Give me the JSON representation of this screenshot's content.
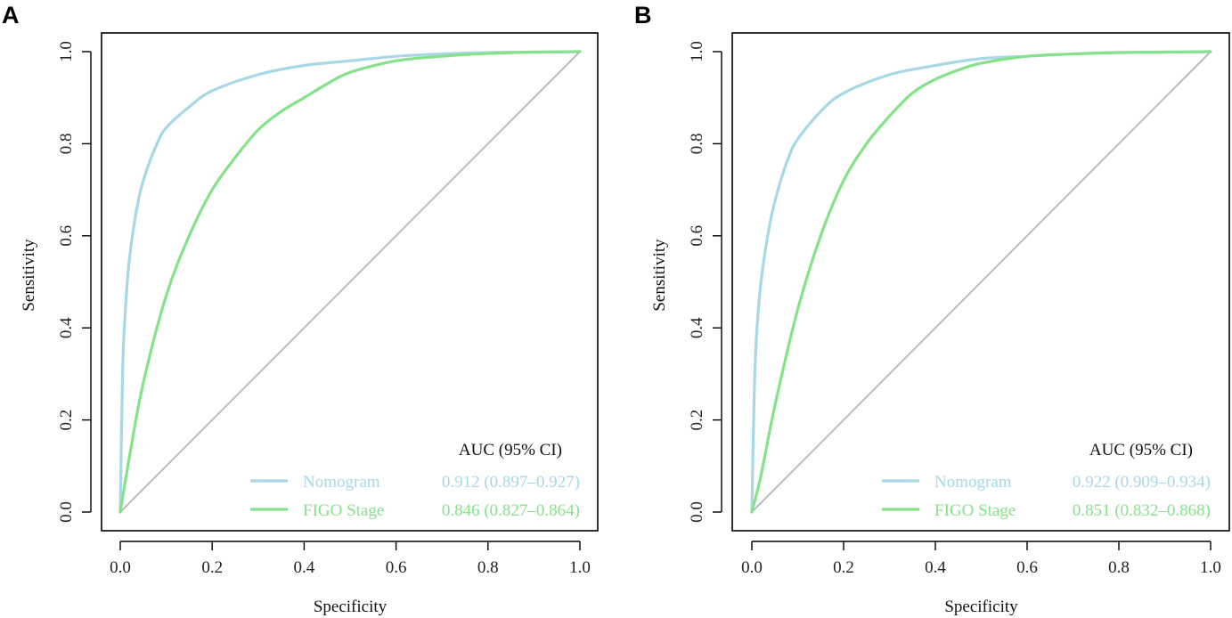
{
  "chart_data": [
    {
      "panel": "A",
      "type": "line",
      "xlabel": "Specificity",
      "ylabel": "Sensitivity",
      "xlim": [
        0.0,
        1.0
      ],
      "ylim": [
        0.0,
        1.0
      ],
      "x_ticks": [
        "0.0",
        "0.2",
        "0.4",
        "0.6",
        "0.8",
        "1.0"
      ],
      "y_ticks": [
        "0.0",
        "0.2",
        "0.4",
        "0.6",
        "0.8",
        "1.0"
      ],
      "legend_title": "AUC (95% CI)",
      "legend_position": "bottom-right",
      "reference_line": {
        "from": [
          0,
          0
        ],
        "to": [
          1,
          1
        ],
        "color": "#bdbdbd"
      },
      "series": [
        {
          "name": "Nomogram",
          "auc_text": "0.912 (0.897–0.927)",
          "color": "#a8d8e6",
          "x": [
            0.0,
            0.005,
            0.01,
            0.02,
            0.04,
            0.06,
            0.08,
            0.1,
            0.15,
            0.2,
            0.3,
            0.4,
            0.5,
            0.6,
            0.7,
            0.8,
            0.9,
            1.0
          ],
          "y": [
            0.0,
            0.3,
            0.42,
            0.55,
            0.68,
            0.75,
            0.8,
            0.835,
            0.88,
            0.915,
            0.95,
            0.97,
            0.98,
            0.99,
            0.995,
            0.998,
            0.999,
            1.0
          ]
        },
        {
          "name": "FIGO Stage",
          "auc_text": "0.846 (0.827–0.864)",
          "color": "#86e28a",
          "x": [
            0.0,
            0.02,
            0.05,
            0.1,
            0.15,
            0.2,
            0.25,
            0.3,
            0.35,
            0.4,
            0.45,
            0.5,
            0.6,
            0.7,
            0.8,
            0.9,
            1.0
          ],
          "y": [
            0.0,
            0.12,
            0.28,
            0.47,
            0.6,
            0.7,
            0.77,
            0.83,
            0.87,
            0.9,
            0.93,
            0.955,
            0.98,
            0.99,
            0.996,
            0.999,
            1.0
          ]
        }
      ]
    },
    {
      "panel": "B",
      "type": "line",
      "xlabel": "Specificity",
      "ylabel": "Sensitivity",
      "xlim": [
        0.0,
        1.0
      ],
      "ylim": [
        0.0,
        1.0
      ],
      "x_ticks": [
        "0.0",
        "0.2",
        "0.4",
        "0.6",
        "0.8",
        "1.0"
      ],
      "y_ticks": [
        "0.0",
        "0.2",
        "0.4",
        "0.6",
        "0.8",
        "1.0"
      ],
      "legend_title": "AUC (95% CI)",
      "legend_position": "bottom-right",
      "reference_line": {
        "from": [
          0,
          0
        ],
        "to": [
          1,
          1
        ],
        "color": "#bdbdbd"
      },
      "series": [
        {
          "name": "Nomogram",
          "auc_text": "0.922 (0.909–0.934)",
          "color": "#a8d8e6",
          "x": [
            0.0,
            0.005,
            0.01,
            0.02,
            0.04,
            0.06,
            0.08,
            0.1,
            0.15,
            0.2,
            0.3,
            0.4,
            0.5,
            0.6,
            0.7,
            0.8,
            0.9,
            1.0
          ],
          "y": [
            0.0,
            0.25,
            0.38,
            0.5,
            0.63,
            0.71,
            0.77,
            0.81,
            0.87,
            0.91,
            0.95,
            0.97,
            0.985,
            0.99,
            0.995,
            0.998,
            0.999,
            1.0
          ]
        },
        {
          "name": "FIGO Stage",
          "auc_text": "0.851 (0.832–0.868)",
          "color": "#86e28a",
          "x": [
            0.0,
            0.02,
            0.05,
            0.1,
            0.15,
            0.2,
            0.25,
            0.3,
            0.35,
            0.4,
            0.45,
            0.5,
            0.6,
            0.7,
            0.8,
            0.9,
            1.0
          ],
          "y": [
            0.0,
            0.08,
            0.23,
            0.44,
            0.6,
            0.72,
            0.8,
            0.86,
            0.91,
            0.94,
            0.96,
            0.975,
            0.99,
            0.995,
            0.998,
            0.999,
            1.0
          ]
        }
      ]
    }
  ]
}
